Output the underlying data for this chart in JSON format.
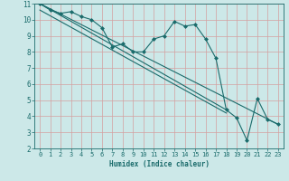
{
  "title": "",
  "xlabel": "Humidex (Indice chaleur)",
  "bg_color": "#cce8e8",
  "grid_color": "#c8dada",
  "line_color": "#1a6b6b",
  "marker_color": "#1a6b6b",
  "xlim": [
    -0.5,
    23.5
  ],
  "ylim": [
    2,
    11
  ],
  "yticks": [
    2,
    3,
    4,
    5,
    6,
    7,
    8,
    9,
    10,
    11
  ],
  "xticks": [
    0,
    1,
    2,
    3,
    4,
    5,
    6,
    7,
    8,
    9,
    10,
    11,
    12,
    13,
    14,
    15,
    16,
    17,
    18,
    19,
    20,
    21,
    22,
    23
  ],
  "main_x": [
    0,
    1,
    2,
    3,
    4,
    5,
    6,
    7,
    8,
    9,
    10,
    11,
    12,
    13,
    14,
    15,
    16,
    17,
    18,
    19,
    20,
    21,
    22,
    23
  ],
  "main_y": [
    11.0,
    10.6,
    10.4,
    10.5,
    10.2,
    10.0,
    9.5,
    8.3,
    8.5,
    8.0,
    8.0,
    8.8,
    9.0,
    9.9,
    9.6,
    9.7,
    8.8,
    7.6,
    4.4,
    3.9,
    2.5,
    5.1,
    3.8,
    3.5
  ],
  "trends": [
    {
      "x": [
        0,
        23
      ],
      "y": [
        11.0,
        3.5
      ]
    },
    {
      "x": [
        0,
        18
      ],
      "y": [
        11.0,
        4.4
      ]
    },
    {
      "x": [
        0,
        18
      ],
      "y": [
        10.6,
        4.2
      ]
    }
  ]
}
